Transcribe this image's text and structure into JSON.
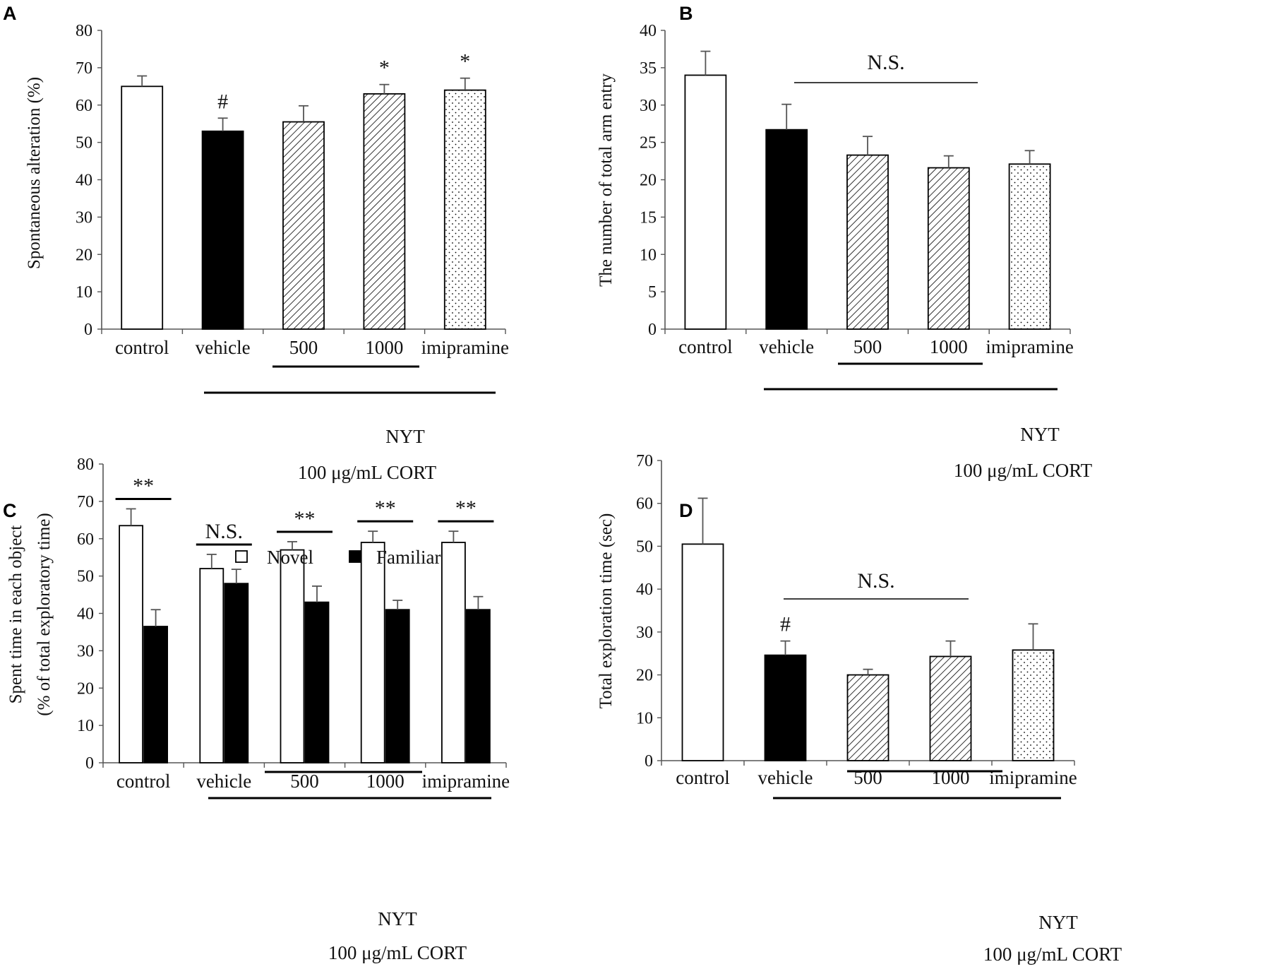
{
  "categories": [
    "control",
    "vehicle",
    "500",
    "1000",
    "imipramine"
  ],
  "group_labels": {
    "nyt": "NYT",
    "cort": "100 μg/mL CORT"
  },
  "panels": {
    "A": "A",
    "B": "B",
    "C": "C",
    "D": "D"
  },
  "legend": {
    "novel": "Novel",
    "familiar": "Familiar"
  },
  "chart_data": [
    {
      "type": "bar",
      "panel": "A",
      "ylabel": "Spontaneous alteration (%)",
      "ylim": [
        0,
        80
      ],
      "yticks": [
        0,
        10,
        20,
        30,
        40,
        50,
        60,
        70,
        80
      ],
      "categories": [
        "control",
        "vehicle",
        "500",
        "1000",
        "imipramine"
      ],
      "values": [
        65,
        53,
        55.5,
        63,
        64
      ],
      "errors": [
        2.8,
        3.5,
        4.3,
        2.5,
        3.2
      ],
      "fills": [
        "white",
        "black",
        "hatch",
        "hatch",
        "dots"
      ],
      "significance": [
        "",
        "#",
        "",
        "*",
        "*"
      ]
    },
    {
      "type": "bar",
      "panel": "B",
      "ylabel": "The number of total arm entry",
      "ylim": [
        0,
        40
      ],
      "yticks": [
        0,
        5,
        10,
        15,
        20,
        25,
        30,
        35,
        40
      ],
      "categories": [
        "control",
        "vehicle",
        "500",
        "1000",
        "imipramine"
      ],
      "values": [
        34,
        26.7,
        23.3,
        21.6,
        22.1
      ],
      "errors": [
        3.2,
        3.4,
        2.5,
        1.6,
        1.8
      ],
      "fills": [
        "white",
        "black",
        "hatch",
        "hatch",
        "dots"
      ],
      "bracket": "N.S."
    },
    {
      "type": "bar",
      "panel": "C",
      "ylabel": "Spent time in each object",
      "ylabel2": "(% of total exploratory time)",
      "ylim": [
        0,
        80
      ],
      "yticks": [
        0,
        10,
        20,
        30,
        40,
        50,
        60,
        70,
        80
      ],
      "categories": [
        "control",
        "vehicle",
        "500",
        "1000",
        "imipramine"
      ],
      "series": [
        {
          "name": "Novel",
          "values": [
            63.5,
            52,
            57,
            59,
            59
          ],
          "errors": [
            4.5,
            3.8,
            2.2,
            3,
            3
          ]
        },
        {
          "name": "Familiar",
          "values": [
            36.5,
            48,
            43,
            41,
            41
          ],
          "errors": [
            4.5,
            3.8,
            4.3,
            2.5,
            3.5
          ]
        }
      ],
      "significance": [
        "**",
        "N.S.",
        "**",
        "**",
        "**"
      ]
    },
    {
      "type": "bar",
      "panel": "D",
      "ylabel": "Total exploration time (sec)",
      "ylim": [
        0,
        70
      ],
      "yticks": [
        0,
        10,
        20,
        30,
        40,
        50,
        60,
        70
      ],
      "categories": [
        "control",
        "vehicle",
        "500",
        "1000",
        "imipramine"
      ],
      "values": [
        50.5,
        24.6,
        20,
        24.3,
        25.8
      ],
      "errors": [
        10.7,
        3.3,
        1.3,
        3.6,
        6.1
      ],
      "fills": [
        "white",
        "black",
        "hatch",
        "hatch",
        "dots"
      ],
      "significance": [
        "",
        "#",
        "",
        "",
        ""
      ],
      "bracket": "N.S."
    }
  ]
}
